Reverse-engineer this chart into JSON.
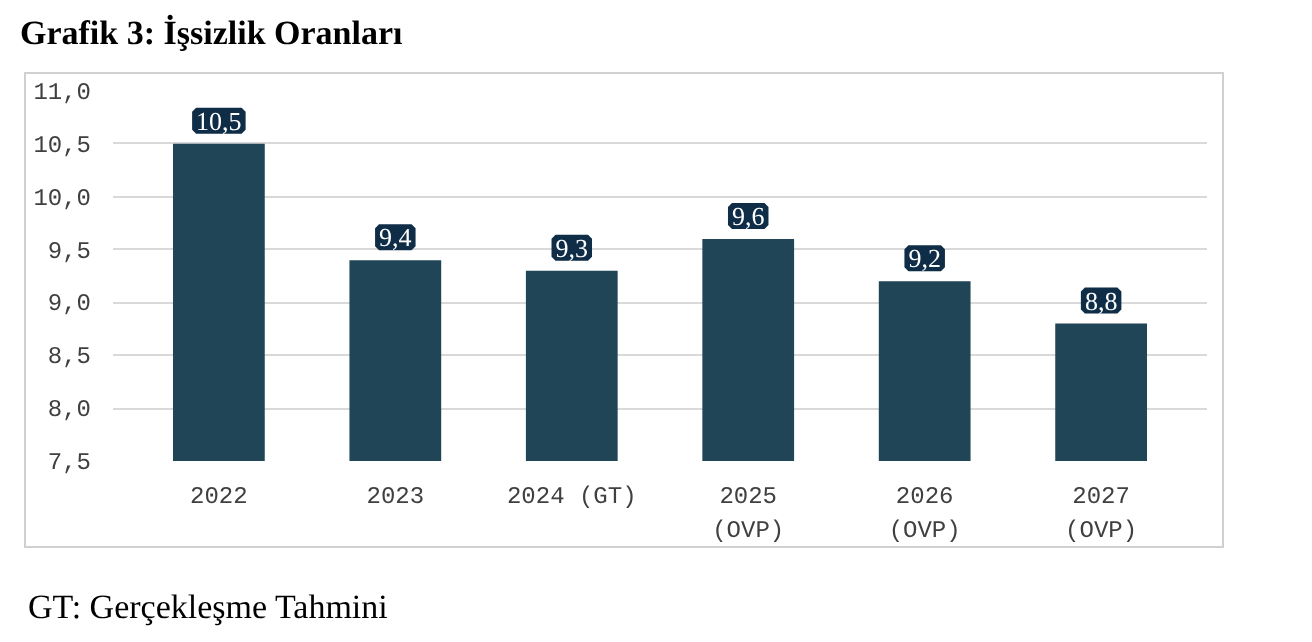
{
  "chart_data": {
    "type": "bar",
    "title": "Grafik 3: İşsizlik Oranları",
    "categories": [
      "2022",
      "2023",
      "2024 (GT)",
      "2025\n(OVP)",
      "2026\n(OVP)",
      "2027\n(OVP)"
    ],
    "values": [
      10.5,
      9.4,
      9.3,
      9.6,
      9.2,
      8.8
    ],
    "value_labels": [
      "10,5",
      "9,4",
      "9,3",
      "9,6",
      "9,2",
      "8,8"
    ],
    "color": "#1f4556",
    "ylim": [
      7.5,
      11.0
    ],
    "yticks": [
      {
        "value": 7.5,
        "label": "7,5"
      },
      {
        "value": 8.0,
        "label": "8,0"
      },
      {
        "value": 8.5,
        "label": "8,5"
      },
      {
        "value": 9.0,
        "label": "9,0"
      },
      {
        "value": 9.5,
        "label": "9,5"
      },
      {
        "value": 10.0,
        "label": "10,0"
      },
      {
        "value": 10.5,
        "label": "10,5"
      },
      {
        "value": 11.0,
        "label": "11,0"
      }
    ],
    "grid": "y",
    "annotations": [
      "GT: Gerçekleşme Tahmini"
    ]
  }
}
